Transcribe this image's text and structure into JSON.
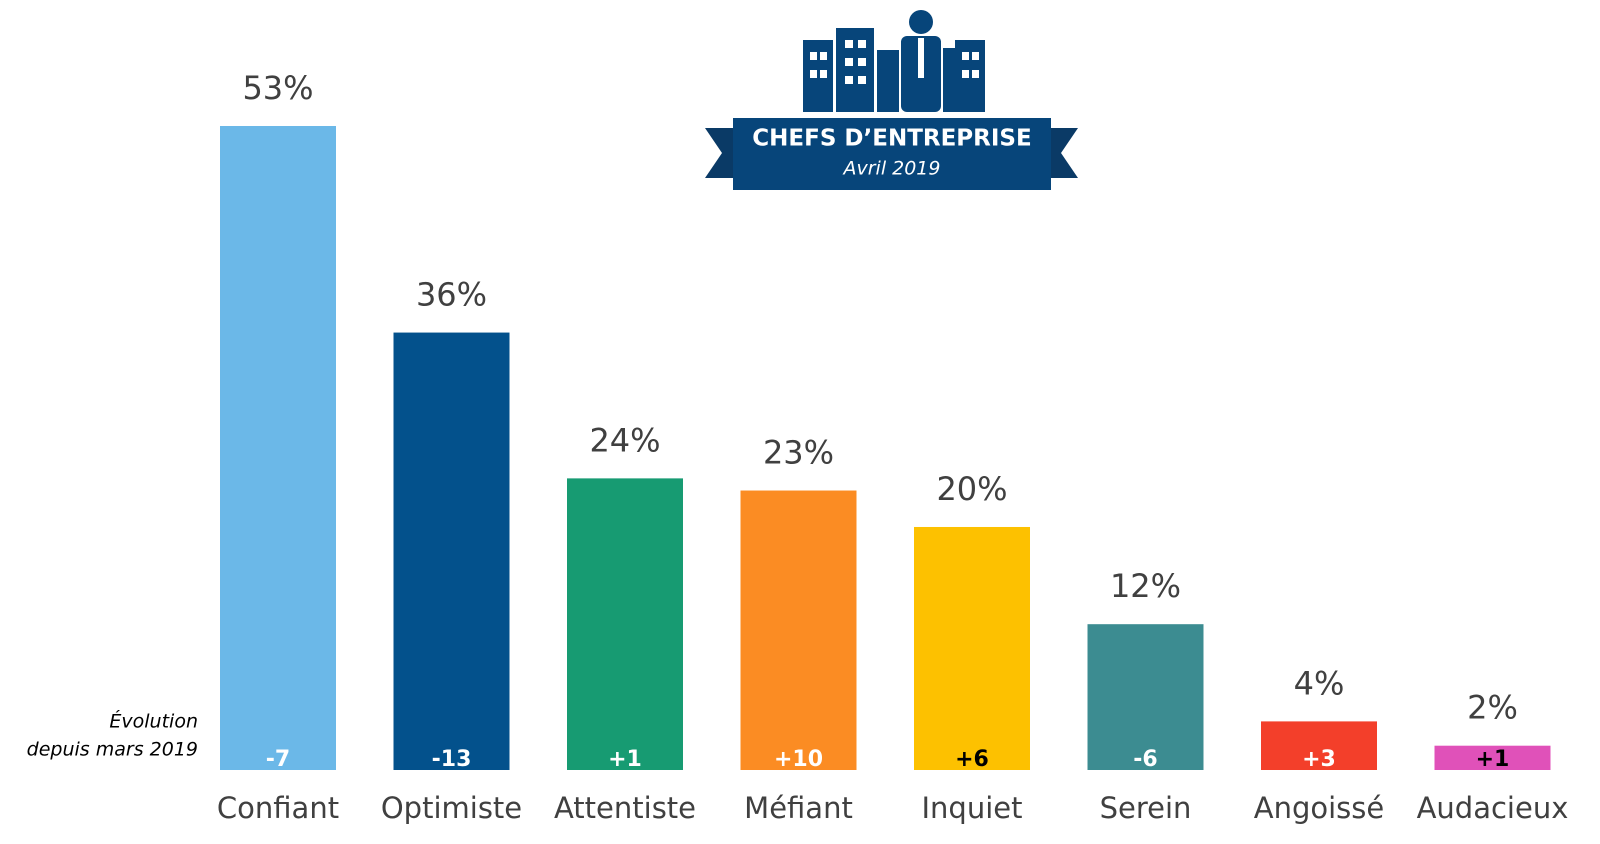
{
  "chart_data": {
    "type": "bar",
    "title": "CHEFS D’ENTREPRISE",
    "subtitle": "Avril 2019",
    "categories": [
      "Confiant",
      "Optimiste",
      "Attentiste",
      "Méfiant",
      "Inquiet",
      "Serein",
      "Angoissé",
      "Audacieux"
    ],
    "values": [
      53,
      36,
      24,
      23,
      20,
      12,
      4,
      2
    ],
    "value_labels": [
      "53%",
      "36%",
      "24%",
      "23%",
      "20%",
      "12%",
      "4%",
      "2%"
    ],
    "colors": [
      "#6bb8e8",
      "#03518c",
      "#179b72",
      "#fb8c23",
      "#fdc100",
      "#3c8c91",
      "#f33f2a",
      "#e051b9"
    ],
    "evolution": {
      "label": [
        "Évolution",
        "depuis mars 2019"
      ],
      "values": [
        -7,
        -13,
        1,
        10,
        6,
        -6,
        3,
        1
      ],
      "value_labels": [
        "-7",
        "-13",
        "+1",
        "+10",
        "+6",
        "-6",
        "+3",
        "+1"
      ],
      "colors": [
        "#ffffff",
        "#ffffff",
        "#ffffff",
        "#ffffff",
        "#000000",
        "#ffffff",
        "#ffffff",
        "#000000"
      ]
    }
  }
}
